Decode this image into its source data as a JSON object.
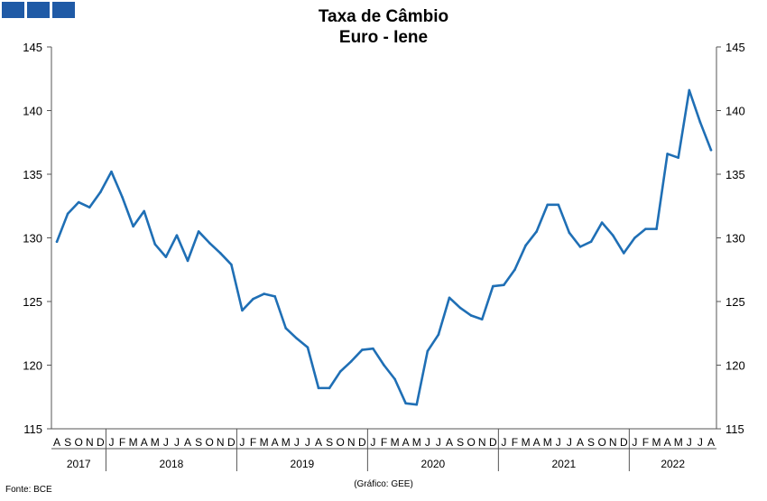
{
  "header": {
    "title": "Taxa de Câmbio",
    "subtitle": "Euro - Iene"
  },
  "footer": {
    "source": "Fonte: BCE",
    "credit": "(Gráfico: GEE)"
  },
  "colors": {
    "logo": "#1f5aa6",
    "line": "#1f6fb5",
    "axis": "#555555"
  },
  "chart_data": {
    "type": "line",
    "title": "Taxa de Câmbio Euro - Iene",
    "ylim": [
      115,
      145
    ],
    "yticks": [
      115,
      120,
      125,
      130,
      135,
      140,
      145
    ],
    "y_axis_both_sides": true,
    "grid": false,
    "month_labels": [
      "A",
      "S",
      "O",
      "N",
      "D",
      "J",
      "F",
      "M",
      "A",
      "M",
      "J",
      "J",
      "A",
      "S",
      "O",
      "N",
      "D",
      "J",
      "F",
      "M",
      "A",
      "M",
      "J",
      "J",
      "A",
      "S",
      "O",
      "N",
      "D",
      "J",
      "F",
      "M",
      "A",
      "M",
      "J",
      "J",
      "A",
      "S",
      "O",
      "N",
      "D",
      "J",
      "F",
      "M",
      "A",
      "M",
      "J",
      "J",
      "A",
      "S",
      "O",
      "N",
      "D",
      "J",
      "F",
      "M",
      "A",
      "M",
      "J",
      "J",
      "A"
    ],
    "years": [
      {
        "label": "2017",
        "months": 5
      },
      {
        "label": "2018",
        "months": 12
      },
      {
        "label": "2019",
        "months": 12
      },
      {
        "label": "2020",
        "months": 12
      },
      {
        "label": "2021",
        "months": 12
      },
      {
        "label": "2022",
        "months": 8
      }
    ],
    "series": [
      {
        "values": [
          129.7,
          131.9,
          132.8,
          132.4,
          133.6,
          135.2,
          133.2,
          130.9,
          132.1,
          129.5,
          128.5,
          130.2,
          128.2,
          130.5,
          129.6,
          128.8,
          127.9,
          124.3,
          125.2,
          125.6,
          125.4,
          122.9,
          122.1,
          121.4,
          118.2,
          118.2,
          119.5,
          120.3,
          121.2,
          121.3,
          120.0,
          118.9,
          117.0,
          116.9,
          121.1,
          122.4,
          125.3,
          124.5,
          123.9,
          123.6,
          126.2,
          126.3,
          127.5,
          129.4,
          130.5,
          132.6,
          132.6,
          130.4,
          129.3,
          129.7,
          131.2,
          130.2,
          128.8,
          130.0,
          130.7,
          130.7,
          136.6,
          136.3,
          141.6,
          139.1,
          136.9
        ]
      }
    ]
  }
}
